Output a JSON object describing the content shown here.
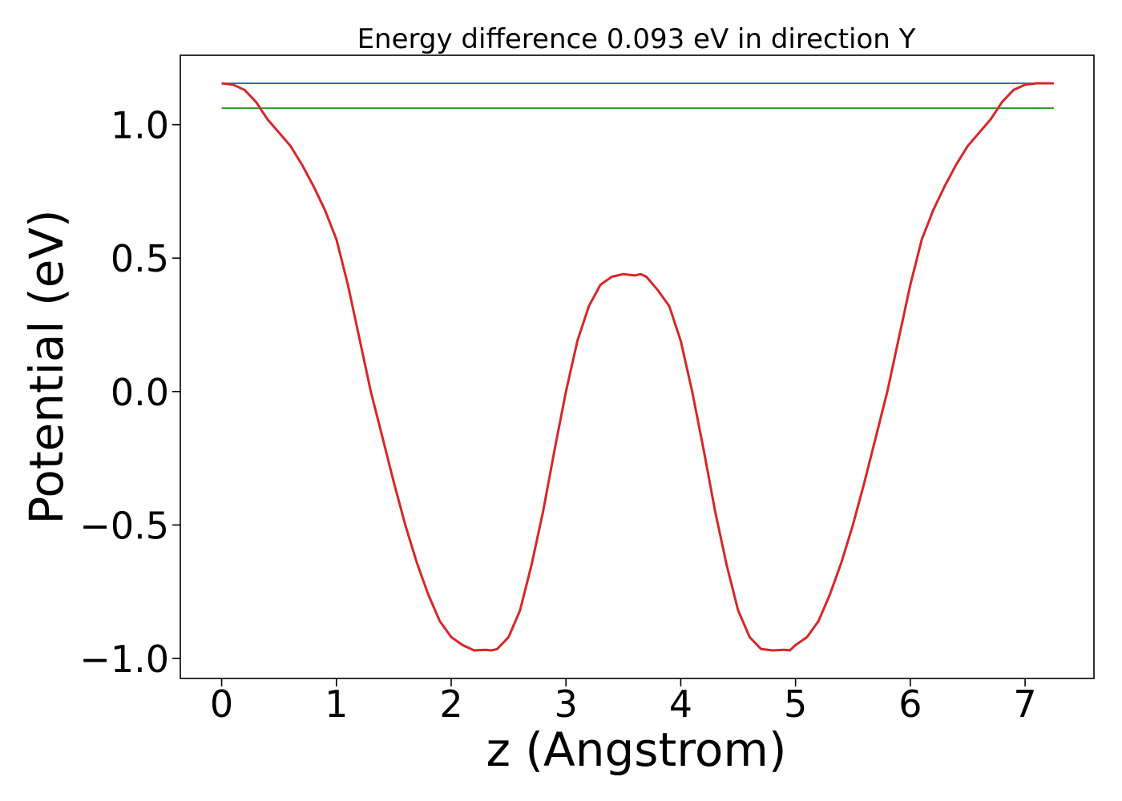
{
  "chart_data": {
    "type": "line",
    "title": "Energy difference 0.093 eV in direction Y",
    "xlabel": "z (Angstrom)",
    "ylabel": "Potential (eV)",
    "xlim": [
      -0.36,
      7.6
    ],
    "ylim": [
      -1.075,
      1.26
    ],
    "x_ticks": [
      0,
      1,
      2,
      3,
      4,
      5,
      6,
      7
    ],
    "x_tick_labels": [
      "0",
      "1",
      "2",
      "3",
      "4",
      "5",
      "6",
      "7"
    ],
    "y_ticks": [
      -1.0,
      -0.5,
      0.0,
      0.5,
      1.0
    ],
    "y_tick_labels": [
      "−1.0",
      "−0.5",
      "0.0",
      "0.5",
      "1.0"
    ],
    "grid": false,
    "series": [
      {
        "color": "#1f77b4",
        "x": [
          0,
          7.25
        ],
        "y": [
          1.155,
          1.155
        ]
      },
      {
        "color": "#2ca02c",
        "x": [
          0,
          7.25
        ],
        "y": [
          1.062,
          1.062
        ]
      },
      {
        "color": "#d62728",
        "x": [
          0,
          0.1,
          0.2,
          0.3,
          0.4,
          0.5,
          0.6,
          0.7,
          0.8,
          0.9,
          1.0,
          1.1,
          1.2,
          1.3,
          1.4,
          1.5,
          1.6,
          1.7,
          1.8,
          1.9,
          2.0,
          2.1,
          2.2,
          2.3,
          2.35,
          2.4,
          2.5,
          2.6,
          2.7,
          2.8,
          2.9,
          3.0,
          3.1,
          3.2,
          3.3,
          3.4,
          3.5,
          3.6,
          3.65,
          3.7,
          3.8,
          3.9,
          4.0,
          4.1,
          4.2,
          4.3,
          4.4,
          4.5,
          4.6,
          4.7,
          4.8,
          4.9,
          4.95,
          5.0,
          5.1,
          5.2,
          5.3,
          5.4,
          5.5,
          5.6,
          5.7,
          5.8,
          5.9,
          6.0,
          6.1,
          6.2,
          6.3,
          6.4,
          6.5,
          6.6,
          6.7,
          6.8,
          6.9,
          7.0,
          7.1,
          7.2,
          7.25
        ],
        "y": [
          1.155,
          1.15,
          1.13,
          1.085,
          1.02,
          0.97,
          0.92,
          0.85,
          0.77,
          0.68,
          0.57,
          0.4,
          0.2,
          0.0,
          -0.17,
          -0.34,
          -0.5,
          -0.64,
          -0.76,
          -0.86,
          -0.92,
          -0.95,
          -0.97,
          -0.968,
          -0.97,
          -0.965,
          -0.92,
          -0.82,
          -0.65,
          -0.45,
          -0.22,
          0.0,
          0.19,
          0.32,
          0.4,
          0.43,
          0.44,
          0.435,
          0.44,
          0.43,
          0.38,
          0.32,
          0.19,
          0.0,
          -0.22,
          -0.45,
          -0.65,
          -0.82,
          -0.92,
          -0.965,
          -0.97,
          -0.968,
          -0.97,
          -0.95,
          -0.92,
          -0.86,
          -0.76,
          -0.64,
          -0.5,
          -0.34,
          -0.17,
          0.0,
          0.2,
          0.4,
          0.57,
          0.68,
          0.77,
          0.85,
          0.92,
          0.97,
          1.02,
          1.085,
          1.13,
          1.15,
          1.155,
          1.155,
          1.155
        ]
      }
    ]
  }
}
